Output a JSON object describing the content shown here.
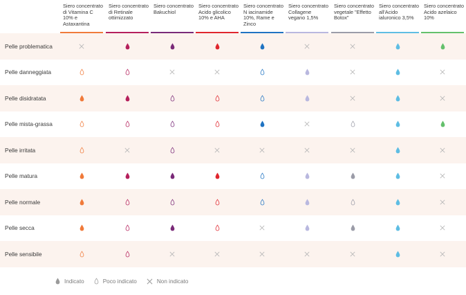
{
  "columns": [
    {
      "label": "Siero concentrato di Vitamina C 10% e Astaxantina",
      "color": "#f07a3a"
    },
    {
      "label": "Siero concentrato di Retinale ottimizzato",
      "color": "#b5205c"
    },
    {
      "label": "Siero concentrato Bakuchiol",
      "color": "#7a2a78"
    },
    {
      "label": "Siero concentrato Acido glicolico 10% e AHA",
      "color": "#e0262e"
    },
    {
      "label": "Siero concentrato N iacinamide 10%, Rame e Zinco",
      "color": "#1f73c2"
    },
    {
      "label": "Siero concentrato Collagene vegano 1,5%",
      "color": "#b9b8df"
    },
    {
      "label": "Siero concentrato vegetale \"Effetto Botox\"",
      "color": "#9b9ca8"
    },
    {
      "label": "Siero concentrato all'Acido ialuronico 3,5%",
      "color": "#5ebde3"
    },
    {
      "label": "Siero concentrato Acido azelaico 10%",
      "color": "#64c06c"
    }
  ],
  "rows": [
    {
      "label": "Pelle problematica",
      "cells": [
        "x",
        "i",
        "i",
        "i",
        "i",
        "x",
        "x",
        "i",
        "i"
      ]
    },
    {
      "label": "Pelle danneggiata",
      "cells": [
        "p",
        "p",
        "x",
        "x",
        "p",
        "i",
        "x",
        "i",
        "x"
      ]
    },
    {
      "label": "Pelle disidratata",
      "cells": [
        "i",
        "i",
        "p",
        "p",
        "p",
        "i",
        "x",
        "i",
        "x"
      ]
    },
    {
      "label": "Pelle mista-grassa",
      "cells": [
        "p",
        "p",
        "p",
        "p",
        "i",
        "x",
        "p",
        "i",
        "i"
      ]
    },
    {
      "label": "Pelle irritata",
      "cells": [
        "p",
        "x",
        "p",
        "x",
        "x",
        "x",
        "x",
        "i",
        "x"
      ]
    },
    {
      "label": "Pelle matura",
      "cells": [
        "i",
        "i",
        "i",
        "i",
        "p",
        "i",
        "i",
        "i",
        "x"
      ]
    },
    {
      "label": "Pelle normale",
      "cells": [
        "i",
        "p",
        "p",
        "p",
        "p",
        "i",
        "p",
        "i",
        "x"
      ]
    },
    {
      "label": "Pelle secca",
      "cells": [
        "i",
        "p",
        "i",
        "p",
        "x",
        "i",
        "i",
        "i",
        "x"
      ]
    },
    {
      "label": "Pelle sensibile",
      "cells": [
        "p",
        "p",
        "x",
        "x",
        "x",
        "x",
        "x",
        "i",
        "x"
      ]
    }
  ],
  "legend": {
    "indicated": "Indicato",
    "less_indicated": "Poco indicato",
    "not_indicated": "Non indicato",
    "legend_color": "#9a9a9a"
  },
  "cross_color": "#b9b9b9"
}
